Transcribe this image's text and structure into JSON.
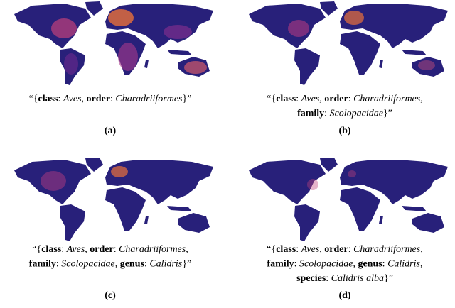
{
  "panels": [
    {
      "label": "(a)",
      "caption": [
        [
          {
            "text": "“{",
            "style": "normal"
          },
          {
            "text": "class",
            "style": "bold"
          },
          {
            "text": ": ",
            "style": "normal"
          },
          {
            "text": "Aves",
            "style": "italic"
          },
          {
            "text": ", ",
            "style": "normal"
          },
          {
            "text": "order",
            "style": "bold"
          },
          {
            "text": ": ",
            "style": "normal"
          },
          {
            "text": "Charadriiformes",
            "style": "italic"
          },
          {
            "text": "}”",
            "style": "normal"
          }
        ]
      ]
    },
    {
      "label": "(b)",
      "caption": [
        [
          {
            "text": "“{",
            "style": "normal"
          },
          {
            "text": "class",
            "style": "bold"
          },
          {
            "text": ": ",
            "style": "normal"
          },
          {
            "text": "Aves",
            "style": "italic"
          },
          {
            "text": ", ",
            "style": "normal"
          },
          {
            "text": "order",
            "style": "bold"
          },
          {
            "text": ": ",
            "style": "normal"
          },
          {
            "text": "Charadriiformes",
            "style": "italic"
          },
          {
            "text": ",",
            "style": "normal"
          }
        ],
        [
          {
            "text": "family",
            "style": "bold"
          },
          {
            "text": ": ",
            "style": "normal"
          },
          {
            "text": "Scolopacidae",
            "style": "italic"
          },
          {
            "text": "}”",
            "style": "normal"
          }
        ]
      ]
    },
    {
      "label": "(c)",
      "caption": [
        [
          {
            "text": "“{",
            "style": "normal"
          },
          {
            "text": "class",
            "style": "bold"
          },
          {
            "text": ": ",
            "style": "normal"
          },
          {
            "text": "Aves",
            "style": "italic"
          },
          {
            "text": ", ",
            "style": "normal"
          },
          {
            "text": "order",
            "style": "bold"
          },
          {
            "text": ": ",
            "style": "normal"
          },
          {
            "text": "Charadriiformes",
            "style": "italic"
          },
          {
            "text": ",",
            "style": "normal"
          }
        ],
        [
          {
            "text": "family",
            "style": "bold"
          },
          {
            "text": ": ",
            "style": "normal"
          },
          {
            "text": "Scolopacidae",
            "style": "italic"
          },
          {
            "text": ", ",
            "style": "normal"
          },
          {
            "text": "genus",
            "style": "bold"
          },
          {
            "text": ": ",
            "style": "normal"
          },
          {
            "text": "Calidris",
            "style": "italic"
          },
          {
            "text": "}”",
            "style": "normal"
          }
        ]
      ]
    },
    {
      "label": "(d)",
      "caption": [
        [
          {
            "text": "“{",
            "style": "normal"
          },
          {
            "text": "class",
            "style": "bold"
          },
          {
            "text": ": ",
            "style": "normal"
          },
          {
            "text": "Aves",
            "style": "italic"
          },
          {
            "text": ", ",
            "style": "normal"
          },
          {
            "text": "order",
            "style": "bold"
          },
          {
            "text": ": ",
            "style": "normal"
          },
          {
            "text": "Charadriiformes",
            "style": "italic"
          },
          {
            "text": ",",
            "style": "normal"
          }
        ],
        [
          {
            "text": "family",
            "style": "bold"
          },
          {
            "text": ": ",
            "style": "normal"
          },
          {
            "text": "Scolopacidae",
            "style": "italic"
          },
          {
            "text": ", ",
            "style": "normal"
          },
          {
            "text": "genus",
            "style": "bold"
          },
          {
            "text": ": ",
            "style": "normal"
          },
          {
            "text": "Calidris",
            "style": "italic"
          },
          {
            "text": ",",
            "style": "normal"
          }
        ],
        [
          {
            "text": "species",
            "style": "bold"
          },
          {
            "text": ": ",
            "style": "normal"
          },
          {
            "text": "Calidris alba",
            "style": "italic"
          },
          {
            "text": "}”",
            "style": "normal"
          }
        ]
      ]
    }
  ]
}
